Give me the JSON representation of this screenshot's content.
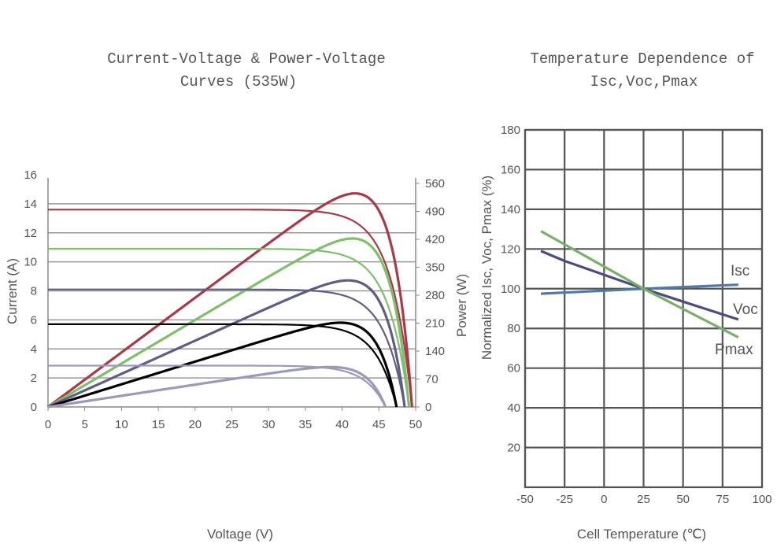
{
  "chart_data": [
    {
      "type": "line",
      "title": [
        "Current-Voltage & Power-Voltage",
        "Curves (535W)"
      ],
      "xlabel": "Voltage (V)",
      "ylabel": "Current (A)",
      "y2label": "Power (W)",
      "xlim": [
        0,
        50
      ],
      "ylim": [
        0,
        16
      ],
      "y2lim": [
        0,
        560
      ],
      "xticks": [
        "0",
        "5",
        "10",
        "15",
        "20",
        "25",
        "30",
        "35",
        "40",
        "45",
        "50"
      ],
      "yticks": [
        "0",
        "2",
        "4",
        "6",
        "8",
        "10",
        "12",
        "14",
        "16"
      ],
      "y2ticks": [
        "0",
        "70",
        "140",
        "210",
        "280",
        "350",
        "420",
        "490",
        "560"
      ],
      "grid": true,
      "series": [
        {
          "color": "#a83a48",
          "isc_A": 13.6,
          "voc_V": 49.5,
          "pmax_W": 535,
          "vmp_V": 41
        },
        {
          "color": "#7fbf6c",
          "isc_A": 10.9,
          "voc_V": 49.1,
          "pmax_W": 422,
          "vmp_V": 41
        },
        {
          "color": "#5f5e82",
          "isc_A": 8.1,
          "voc_V": 48.5,
          "pmax_W": 317,
          "vmp_V": 40.5
        },
        {
          "color": "#000000",
          "isc_A": 5.7,
          "voc_V": 47.4,
          "pmax_W": 211,
          "vmp_V": 40.3
        },
        {
          "color": "#9b99ba",
          "isc_A": 2.85,
          "voc_V": 45.9,
          "pmax_W": 100,
          "vmp_V": 38.5
        }
      ]
    },
    {
      "type": "line",
      "title": [
        "Temperature Dependence of",
        "Isc,Voc,Pmax"
      ],
      "xlabel": "Cell Temperature (℃)",
      "ylabel": "Normalized Isc, Voc, Pmax (%)",
      "xlim": [
        -50,
        100
      ],
      "ylim": [
        0,
        180
      ],
      "xticks": [
        "-50",
        "-25",
        "0",
        "25",
        "50",
        "75",
        "100"
      ],
      "yticks": [
        "20",
        "40",
        "60",
        "80",
        "100",
        "120",
        "140",
        "160",
        "180"
      ],
      "grid": true,
      "series": [
        {
          "name": "Isc",
          "color": "#4f7aa6",
          "x": [
            -40,
            25,
            85
          ],
          "y": [
            97.5,
            100,
            102
          ]
        },
        {
          "name": "Voc",
          "color": "#4d4c80",
          "x": [
            -40,
            -25,
            0,
            25,
            50,
            85
          ],
          "y": [
            119,
            114,
            107,
            100,
            93.5,
            84.5
          ]
        },
        {
          "name": "Pmax",
          "color": "#78b06a",
          "x": [
            -40,
            25,
            85
          ],
          "y": [
            129,
            100,
            75.5
          ]
        }
      ]
    }
  ]
}
